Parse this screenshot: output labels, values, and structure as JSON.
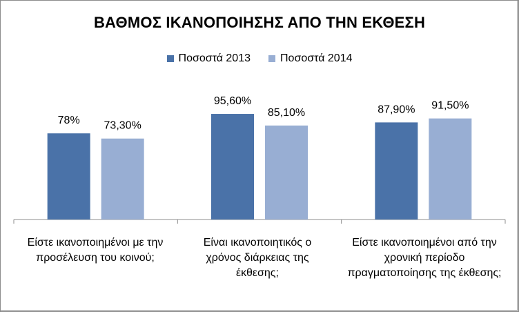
{
  "chart_data": {
    "type": "bar",
    "title": "ΒΑΘΜΟΣ ΙΚΑΝΟΠΟΙΗΣΗΣ ΑΠΟ ΤΗΝ ΕΚΘΕΣΗ",
    "categories": [
      "Είστε ικανοποιημένοι με την προσέλευση του κοινού;",
      "Είναι ικανοποιητικός ο χρόνος διάρκειας της έκθεσης;",
      "Είστε ικανοποιημένοι από την χρονική περίοδο πραγματοποίησης  της έκθεσης;"
    ],
    "series": [
      {
        "name": "Ποσοστά 2013",
        "values": [
          78,
          95.6,
          87.9
        ],
        "labels": [
          "78%",
          "95,60%",
          "87,90%"
        ],
        "color": "#4a72a8"
      },
      {
        "name": "Ποσοστά 2014",
        "values": [
          73.3,
          85.1,
          91.5
        ],
        "labels": [
          "73,30%",
          "85,10%",
          "91,50%"
        ],
        "color": "#98aed3"
      }
    ],
    "ylim": [
      0,
      100
    ],
    "grid": false,
    "legend": "top"
  }
}
